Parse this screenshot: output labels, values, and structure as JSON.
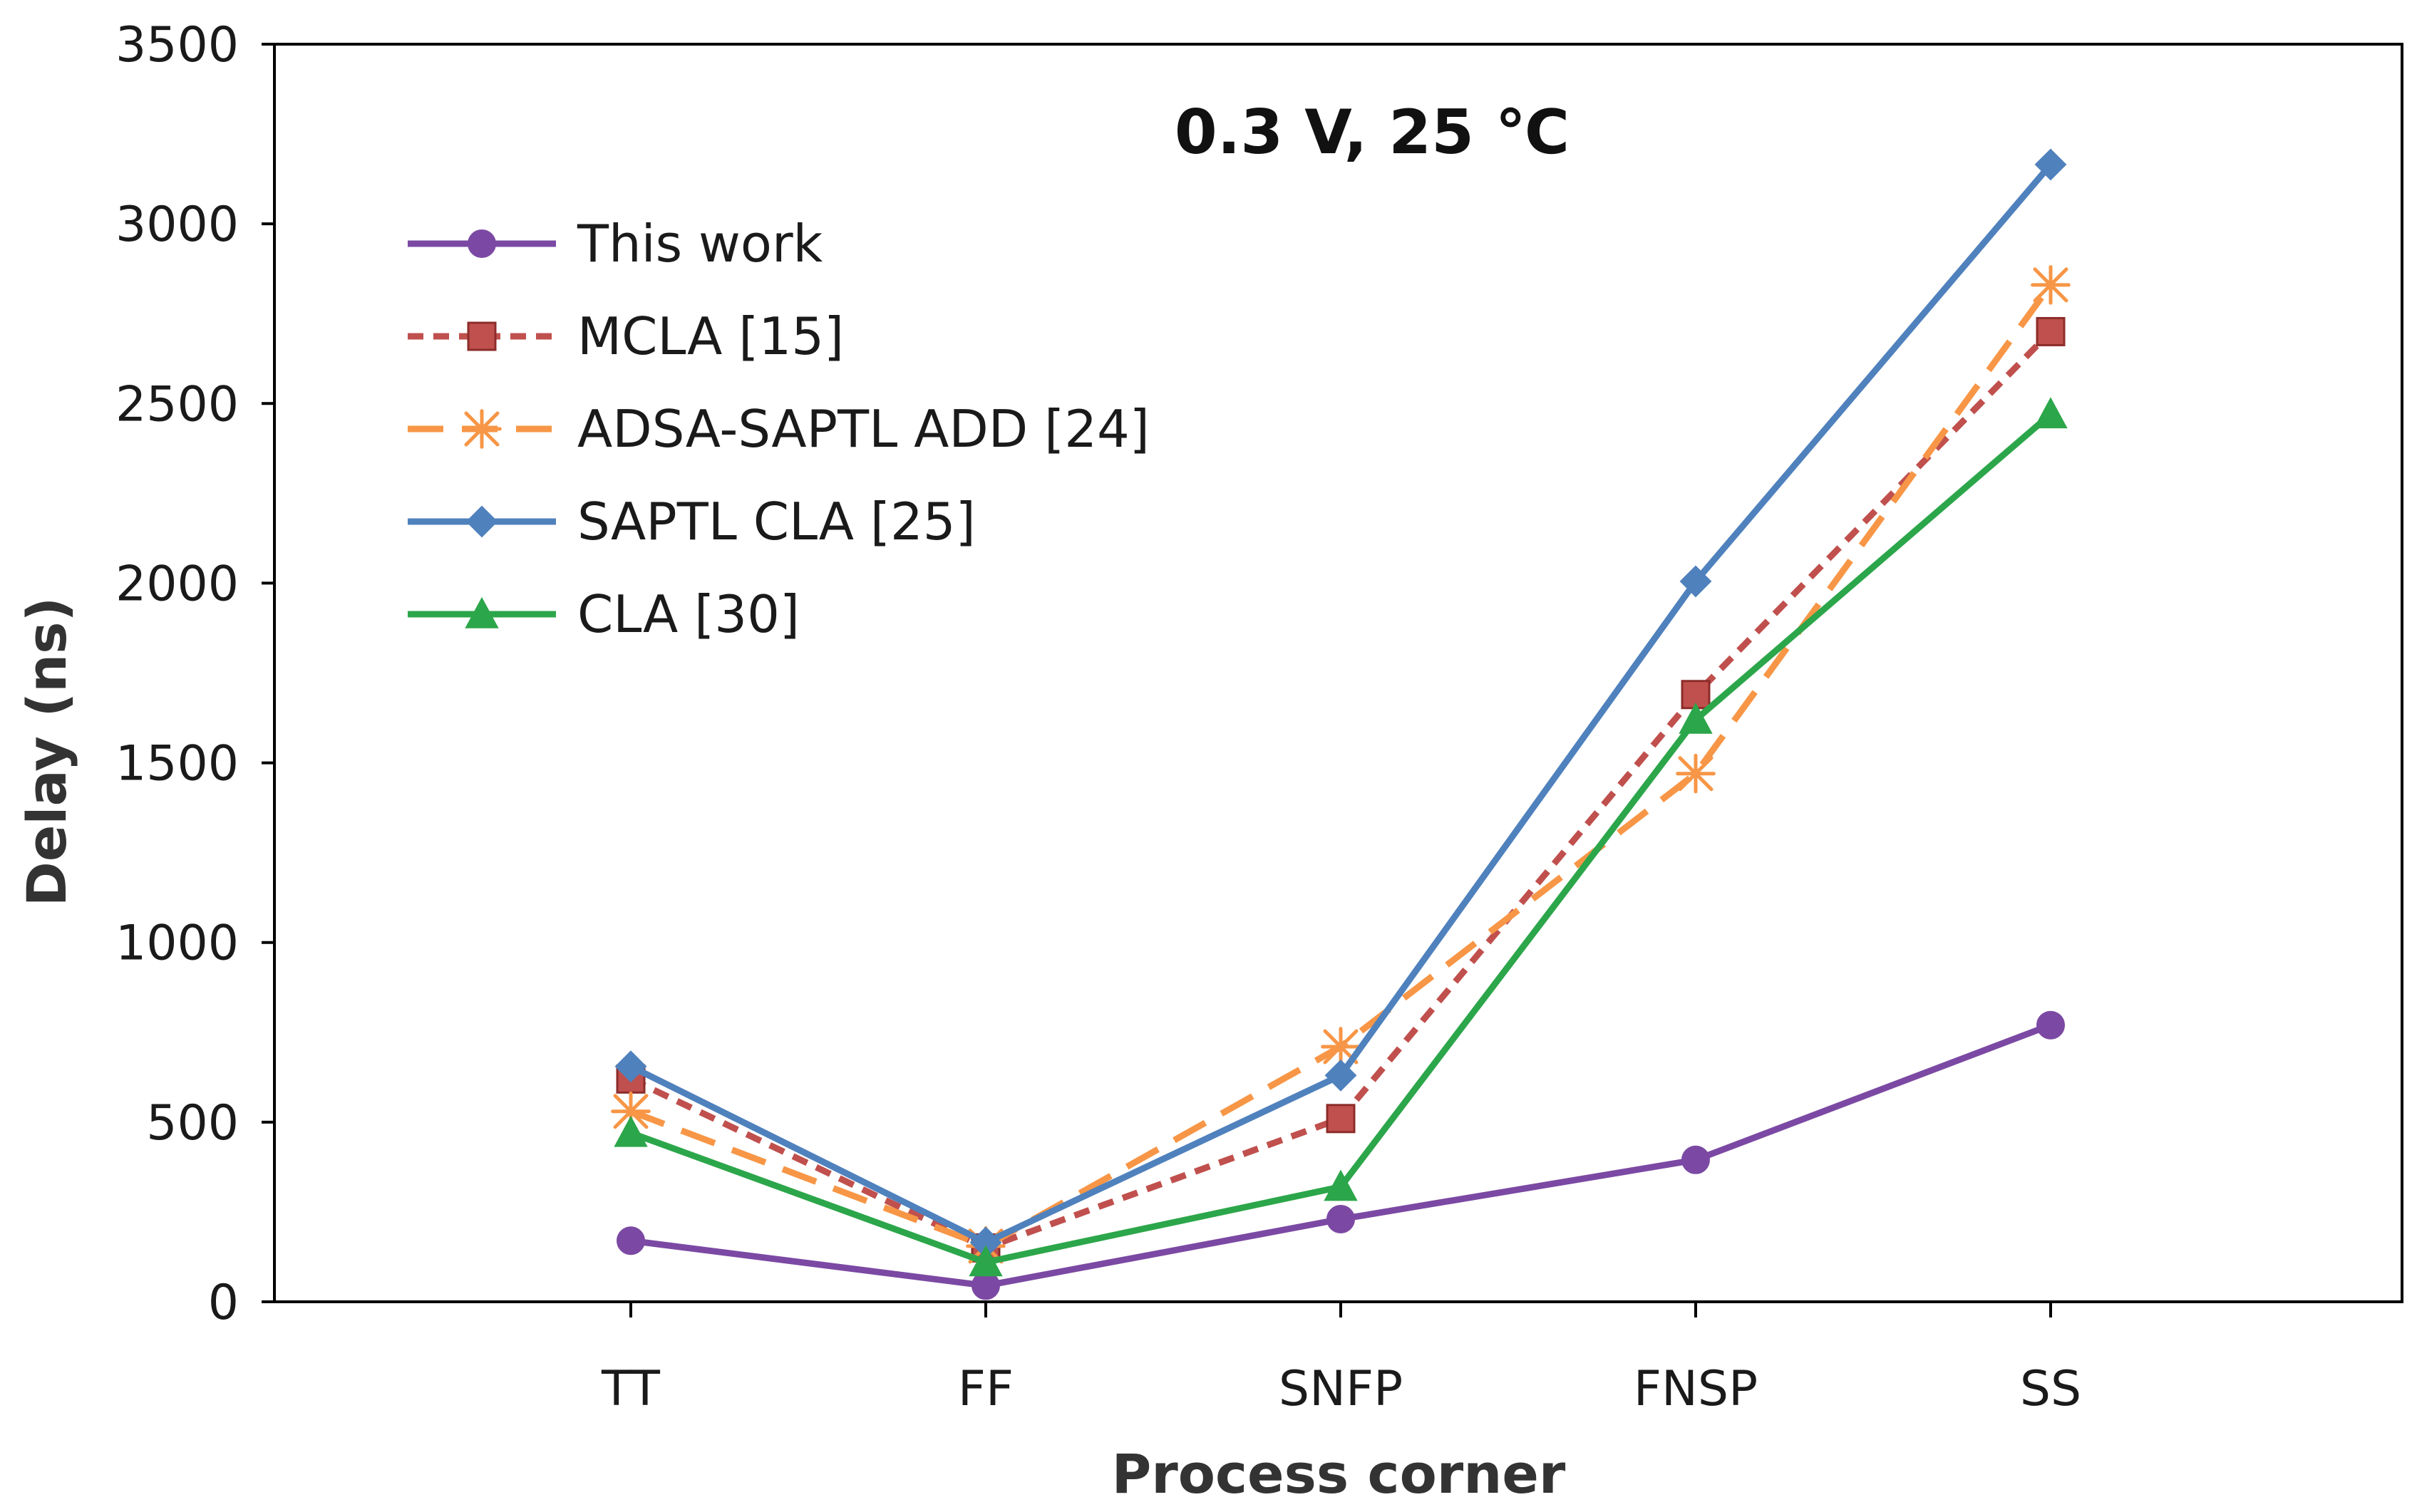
{
  "chart_data": {
    "type": "line",
    "title": "0.3 V, 25 ℃",
    "xlabel": "Process corner",
    "ylabel": "Delay (ns)",
    "categories": [
      "TT",
      "FF",
      "SNFP",
      "FNSP",
      "SS"
    ],
    "ylim": [
      0,
      3500
    ],
    "yticks": [
      0,
      500,
      1000,
      1500,
      2000,
      2500,
      3000,
      3500
    ],
    "grid": false,
    "legend_position": "top-left",
    "series": [
      {
        "name": "This work",
        "values": [
          170,
          45,
          230,
          395,
          770
        ],
        "color": "#7b49a3",
        "line_style": "solid",
        "marker": "circle"
      },
      {
        "name": "MCLA [15]",
        "values": [
          620,
          150,
          510,
          1690,
          2700
        ],
        "color": "#c0504d",
        "line_style": "short-dash",
        "marker": "square"
      },
      {
        "name": "ADSA-SAPTL ADD [24]",
        "values": [
          530,
          155,
          710,
          1470,
          2830
        ],
        "color": "#f79646",
        "line_style": "long-dash",
        "marker": "asterisk"
      },
      {
        "name": "SAPTL CLA [25]",
        "values": [
          655,
          165,
          630,
          2005,
          3165
        ],
        "color": "#4f81bd",
        "line_style": "solid",
        "marker": "diamond"
      },
      {
        "name": "CLA [30]",
        "values": [
          470,
          110,
          320,
          1620,
          2470
        ],
        "color": "#2ca64a",
        "line_style": "solid",
        "marker": "triangle"
      }
    ]
  }
}
